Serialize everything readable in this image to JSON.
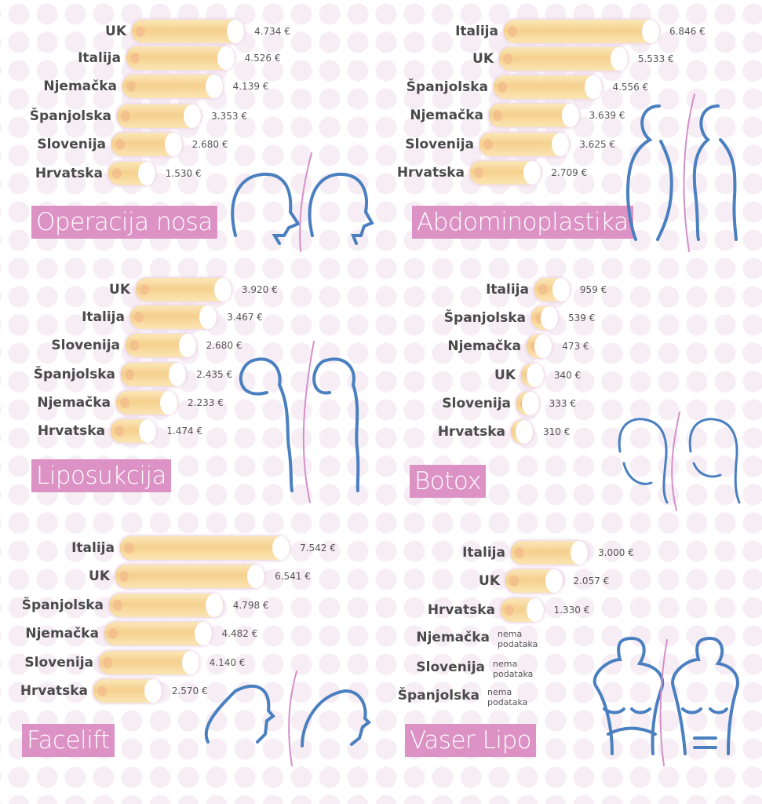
{
  "colors": {
    "title_bg": "#dc92c4",
    "figure_stroke": "#4a7fc0",
    "divider": "#d48fc8",
    "bar": "#f5d08e"
  },
  "no_data_label": "nema podataka",
  "chart_data": [
    {
      "type": "bar",
      "orientation": "horizontal",
      "title": "Operacija nosa",
      "unit": "€",
      "categories": [
        "UK",
        "Italija",
        "Njemačka",
        "Španjolska",
        "Slovenija",
        "Hrvatska"
      ],
      "values": [
        4734,
        4526,
        4139,
        3353,
        2680,
        1530
      ],
      "labels": [
        "4.734 €",
        "4.526 €",
        "4.139 €",
        "3.353 €",
        "2.680 €",
        "1.530 €"
      ]
    },
    {
      "type": "bar",
      "orientation": "horizontal",
      "title": "Abdominoplastika",
      "unit": "€",
      "categories": [
        "Italija",
        "UK",
        "Španjolska",
        "Njemačka",
        "Slovenija",
        "Hrvatska"
      ],
      "values": [
        6846,
        5533,
        4556,
        3639,
        3625,
        2709
      ],
      "labels": [
        "6.846 €",
        "5.533 €",
        "4.556 €",
        "3.639 €",
        "3.625 €",
        "2.709 €"
      ]
    },
    {
      "type": "bar",
      "orientation": "horizontal",
      "title": "Liposukcija",
      "unit": "€",
      "categories": [
        "UK",
        "Italija",
        "Slovenija",
        "Španjolska",
        "Njemačka",
        "Hrvatska"
      ],
      "values": [
        3920,
        3467,
        2680,
        2435,
        2233,
        1474
      ],
      "labels": [
        "3.920 €",
        "3.467 €",
        "2.680 €",
        "2.435 €",
        "2.233 €",
        "1.474 €"
      ]
    },
    {
      "type": "bar",
      "orientation": "horizontal",
      "title": "Botox",
      "unit": "€",
      "categories": [
        "Italija",
        "Španjolska",
        "Njemačka",
        "UK",
        "Slovenija",
        "Hrvatska"
      ],
      "values": [
        959,
        539,
        473,
        340,
        333,
        310
      ],
      "labels": [
        "959 €",
        "539 €",
        "473 €",
        "340 €",
        "333 €",
        "310 €"
      ]
    },
    {
      "type": "bar",
      "orientation": "horizontal",
      "title": "Facelift",
      "unit": "€",
      "categories": [
        "Italija",
        "UK",
        "Španjolska",
        "Njemačka",
        "Slovenija",
        "Hrvatska"
      ],
      "values": [
        7542,
        6541,
        4798,
        4482,
        4140,
        2570
      ],
      "labels": [
        "7.542 €",
        "6.541 €",
        "4.798 €",
        "4.482 €",
        "4.140 €",
        "2.570 €"
      ]
    },
    {
      "type": "bar",
      "orientation": "horizontal",
      "title": "Vaser Lipo",
      "unit": "€",
      "categories": [
        "Italija",
        "UK",
        "Hrvatska",
        "Njemačka",
        "Slovenija",
        "Španjolska"
      ],
      "values": [
        3000,
        2057,
        1330,
        null,
        null,
        null
      ],
      "labels": [
        "3.000 €",
        "2.057 €",
        "1.330 €",
        "nema podataka",
        "nema podataka",
        "nema podataka"
      ]
    }
  ]
}
